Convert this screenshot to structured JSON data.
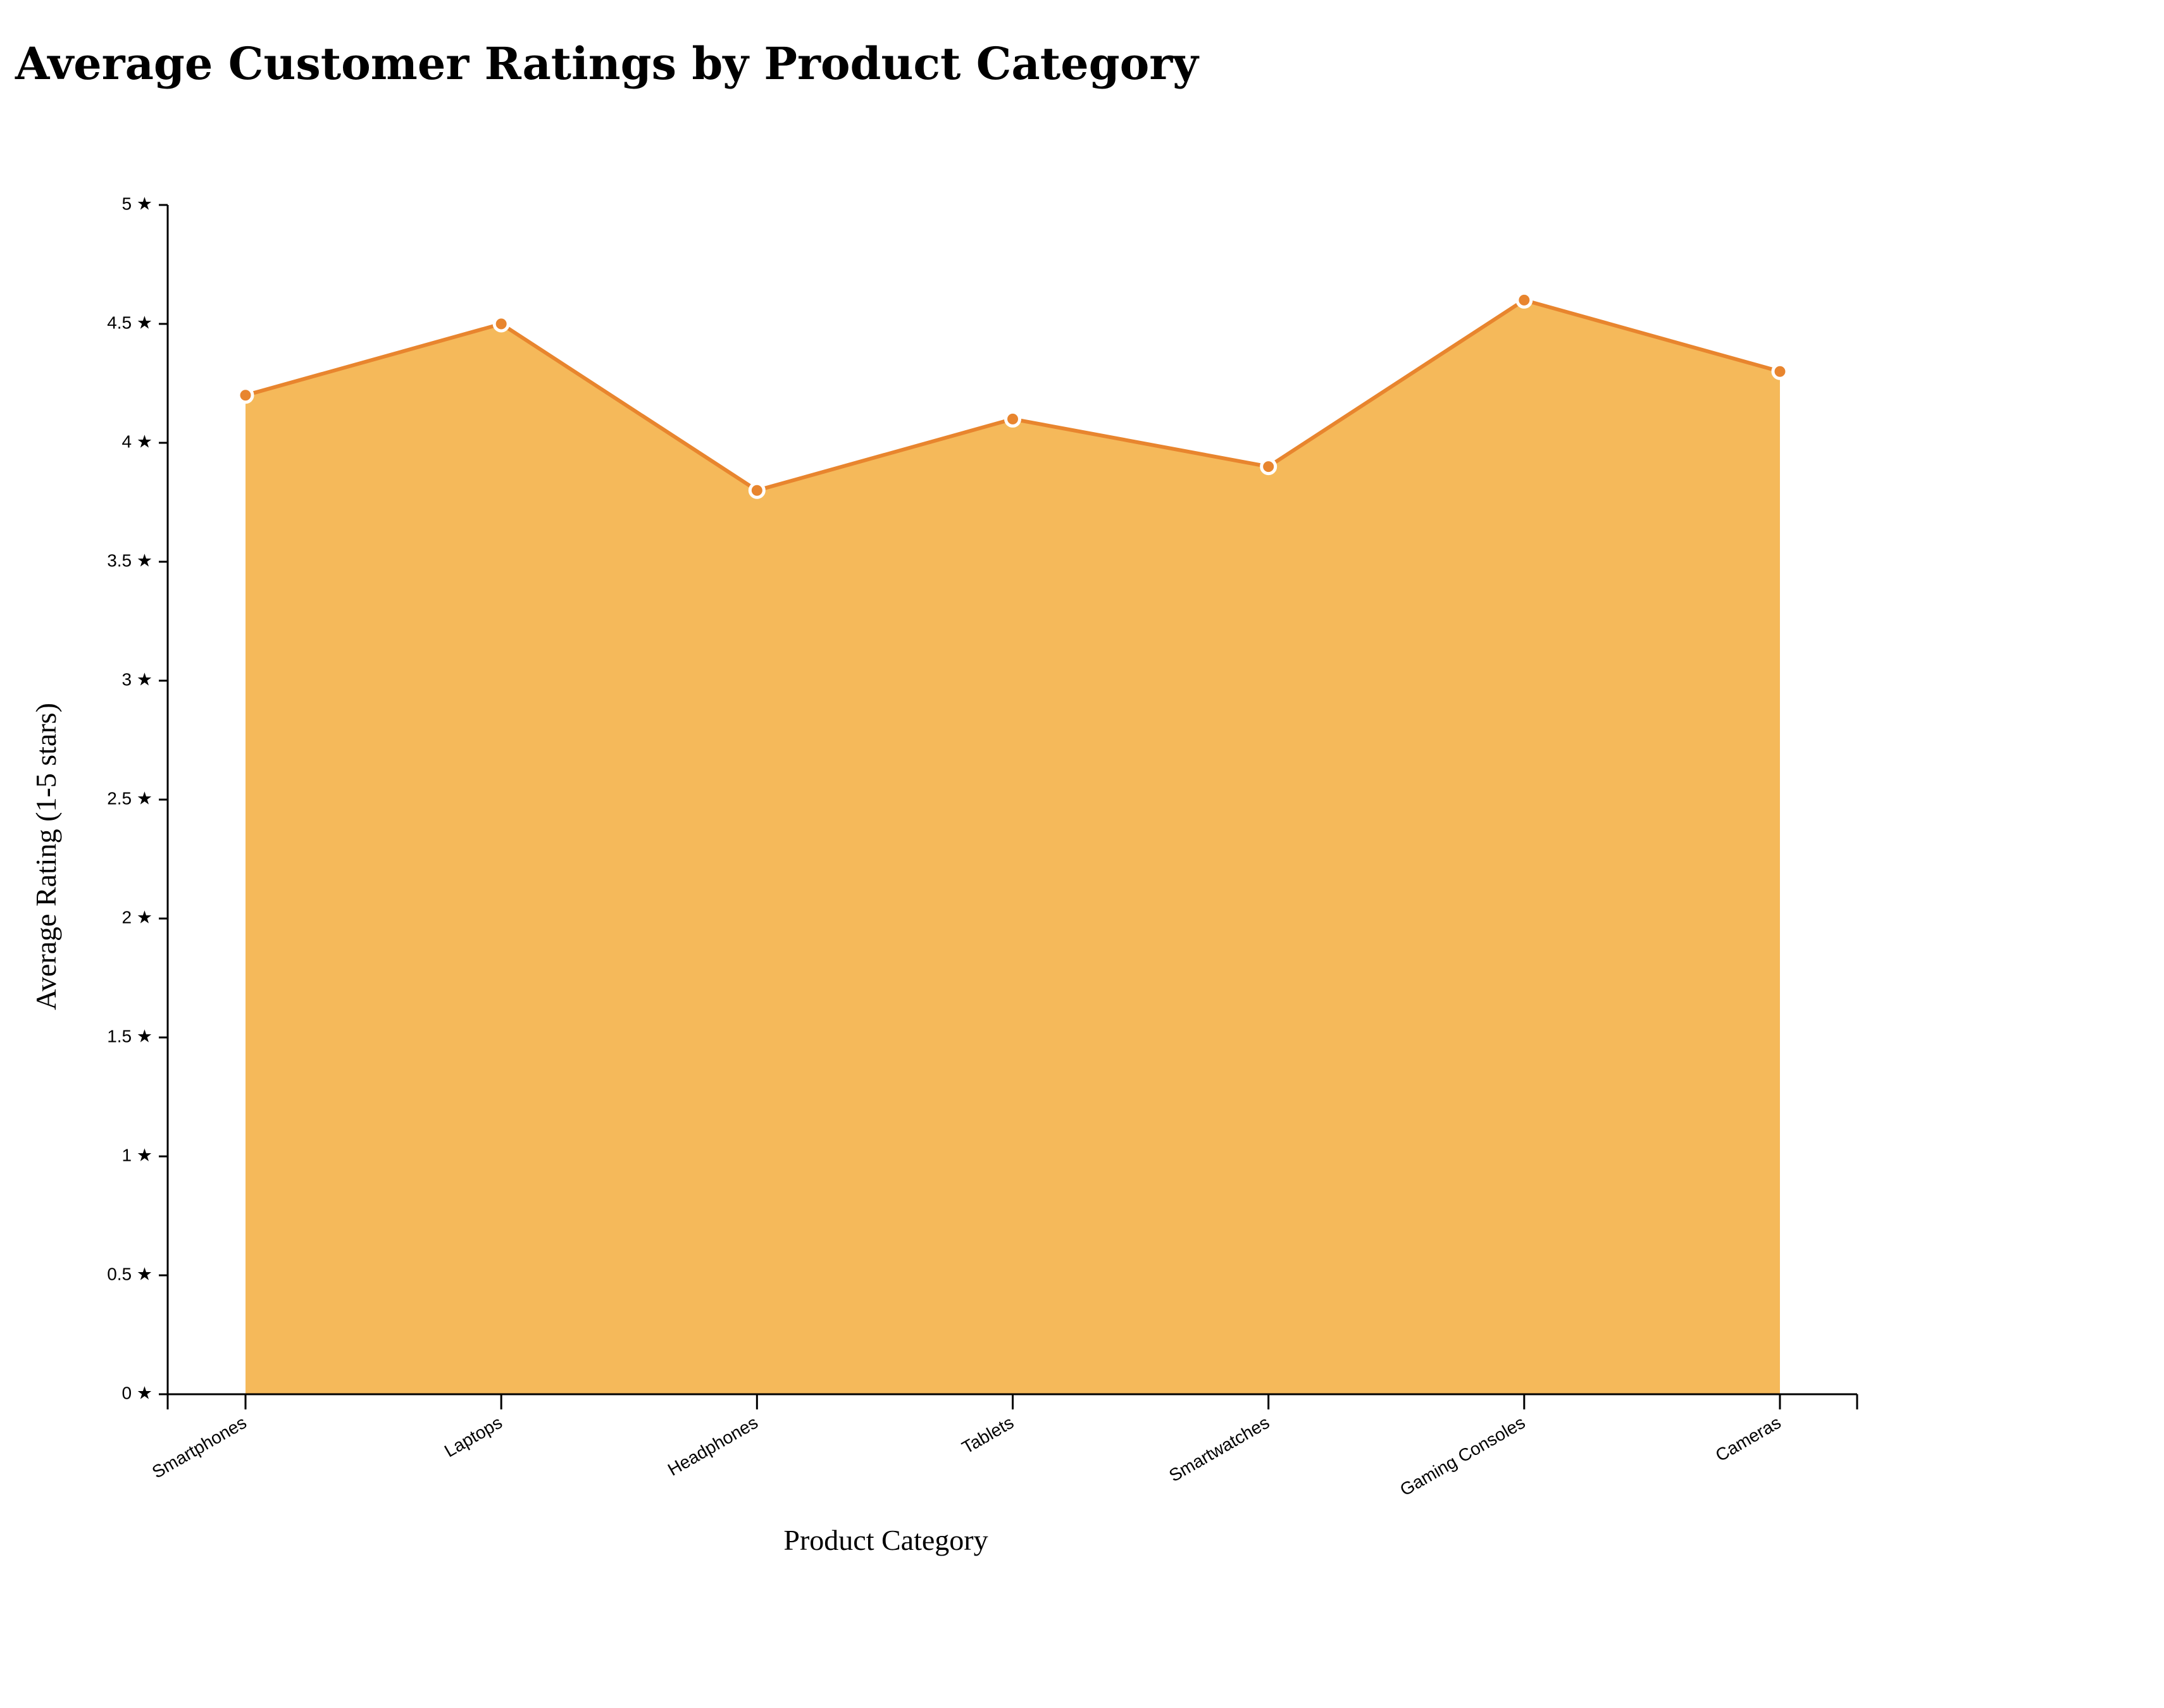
{
  "chart_data": {
    "type": "area",
    "title": "Average Customer Ratings by Product Category",
    "xlabel": "Product Category",
    "ylabel": "Average Rating (1-5 stars)",
    "categories": [
      "Smartphones",
      "Laptops",
      "Headphones",
      "Tablets",
      "Smartwatches",
      "Gaming Consoles",
      "Cameras"
    ],
    "series": [
      {
        "values": [
          4.2,
          4.5,
          3.8,
          4.1,
          3.9,
          4.6,
          4.3
        ]
      }
    ],
    "ylim": [
      0,
      5
    ],
    "y_ticks": [
      "0 ★",
      "0.5 ★",
      "1 ★",
      "1.5 ★",
      "2 ★",
      "2.5 ★",
      "3 ★",
      "3.5 ★",
      "4 ★",
      "4.5 ★",
      "5 ★"
    ],
    "grid": false,
    "colors": {
      "area_fill": "#f5b95a",
      "line": "#e8852e",
      "point_fill": "#e8852e",
      "point_stroke": "#ffffff"
    }
  }
}
